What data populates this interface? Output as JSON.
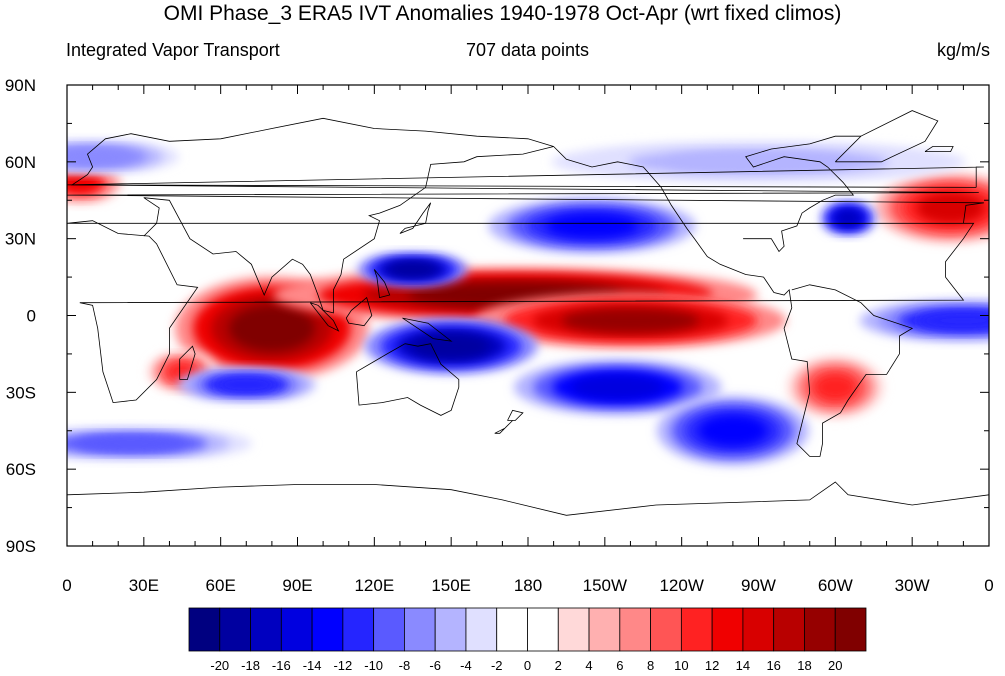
{
  "title": "OMI Phase_3 ERA5 IVT Anomalies 1940-1978 Oct-Apr (wrt fixed climos)",
  "left_string": "Integrated Vapor Transport",
  "center_string": "707 data points",
  "right_string": "kg/m/s",
  "chart_data": {
    "type": "heatmap",
    "projection": "cylindrical equidistant, centered 180",
    "x_axis_labels": [
      "0",
      "30E",
      "60E",
      "90E",
      "120E",
      "150E",
      "180",
      "150W",
      "120W",
      "90W",
      "60W",
      "30W",
      "0"
    ],
    "y_axis_labels": [
      "90N",
      "60N",
      "30N",
      "0",
      "30S",
      "60S",
      "90S"
    ],
    "colorbar": {
      "labels": [
        "-20",
        "-18",
        "-16",
        "-14",
        "-12",
        "-10",
        "-8",
        "-6",
        "-4",
        "-2",
        "0",
        "2",
        "4",
        "6",
        "8",
        "10",
        "12",
        "14",
        "16",
        "18",
        "20"
      ],
      "colors": [
        "#000080",
        "#0000a0",
        "#0000c0",
        "#0000e0",
        "#0000ff",
        "#2525ff",
        "#5a5aff",
        "#8a8aff",
        "#b4b4ff",
        "#e0e0ff",
        "#ffffff",
        "#ffffff",
        "#ffd9d9",
        "#ffb0b0",
        "#ff8888",
        "#ff5555",
        "#ff2222",
        "#f00000",
        "#d80000",
        "#b80000",
        "#960000",
        "#800000"
      ]
    },
    "anomaly_features": [
      {
        "sign": "positive",
        "lon": 80,
        "lat": -5,
        "rx": 28,
        "ry": 15,
        "level": 20
      },
      {
        "sign": "positive",
        "lon": 175,
        "lat": 8,
        "rx": 70,
        "ry": 8,
        "level": 20
      },
      {
        "sign": "positive",
        "lon": 220,
        "lat": -2,
        "rx": 45,
        "ry": 8,
        "level": 18
      },
      {
        "sign": "positive",
        "lon": 345,
        "lat": 42,
        "rx": 22,
        "ry": 10,
        "level": 14
      },
      {
        "sign": "positive",
        "lon": 5,
        "lat": 52,
        "rx": 12,
        "ry": 6,
        "level": 12
      },
      {
        "sign": "positive",
        "lon": 300,
        "lat": -28,
        "rx": 14,
        "ry": 9,
        "level": 10
      },
      {
        "sign": "positive",
        "lon": 45,
        "lat": -22,
        "rx": 10,
        "ry": 6,
        "level": 10
      },
      {
        "sign": "negative",
        "lon": 150,
        "lat": -12,
        "rx": 25,
        "ry": 8,
        "level": -20
      },
      {
        "sign": "negative",
        "lon": 215,
        "lat": -28,
        "rx": 30,
        "ry": 8,
        "level": -16
      },
      {
        "sign": "negative",
        "lon": 205,
        "lat": 35,
        "rx": 30,
        "ry": 8,
        "level": -14
      },
      {
        "sign": "negative",
        "lon": 135,
        "lat": 18,
        "rx": 16,
        "ry": 5,
        "level": -20
      },
      {
        "sign": "negative",
        "lon": 305,
        "lat": 38,
        "rx": 8,
        "ry": 5,
        "level": -18
      },
      {
        "sign": "negative",
        "lon": 260,
        "lat": -45,
        "rx": 22,
        "ry": 10,
        "level": -14
      },
      {
        "sign": "negative",
        "lon": 25,
        "lat": -50,
        "rx": 35,
        "ry": 5,
        "level": -10
      },
      {
        "sign": "negative",
        "lon": 350,
        "lat": -2,
        "rx": 30,
        "ry": 6,
        "level": -12
      },
      {
        "sign": "negative",
        "lon": 70,
        "lat": -27,
        "rx": 20,
        "ry": 5,
        "level": -12
      },
      {
        "sign": "negative",
        "lon": 270,
        "lat": 60,
        "rx": 60,
        "ry": 6,
        "level": -6
      },
      {
        "sign": "negative",
        "lon": 10,
        "lat": 62,
        "rx": 25,
        "ry": 5,
        "level": -8
      }
    ]
  }
}
